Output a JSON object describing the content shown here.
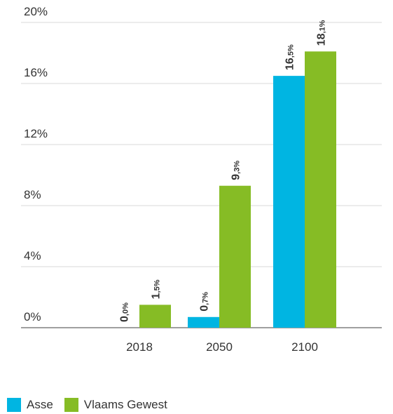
{
  "chart_data": {
    "type": "bar",
    "categories": [
      "2018",
      "2050",
      "2100"
    ],
    "series": [
      {
        "name": "Asse",
        "color": "#00b5e2",
        "values": [
          0.0,
          0.7,
          16.5
        ],
        "labels": [
          "0,0%",
          "0,7%",
          "16,5%"
        ]
      },
      {
        "name": "Vlaams Gewest",
        "color": "#86bc25",
        "values": [
          1.5,
          9.3,
          18.1
        ],
        "labels": [
          "1,5%",
          "9,3%",
          "18,1%"
        ]
      }
    ],
    "yticks": [
      "0%",
      "4%",
      "8%",
      "12%",
      "16%",
      "20%"
    ],
    "ylim": [
      0,
      20
    ],
    "grid": true,
    "legend_position": "bottom-left"
  }
}
